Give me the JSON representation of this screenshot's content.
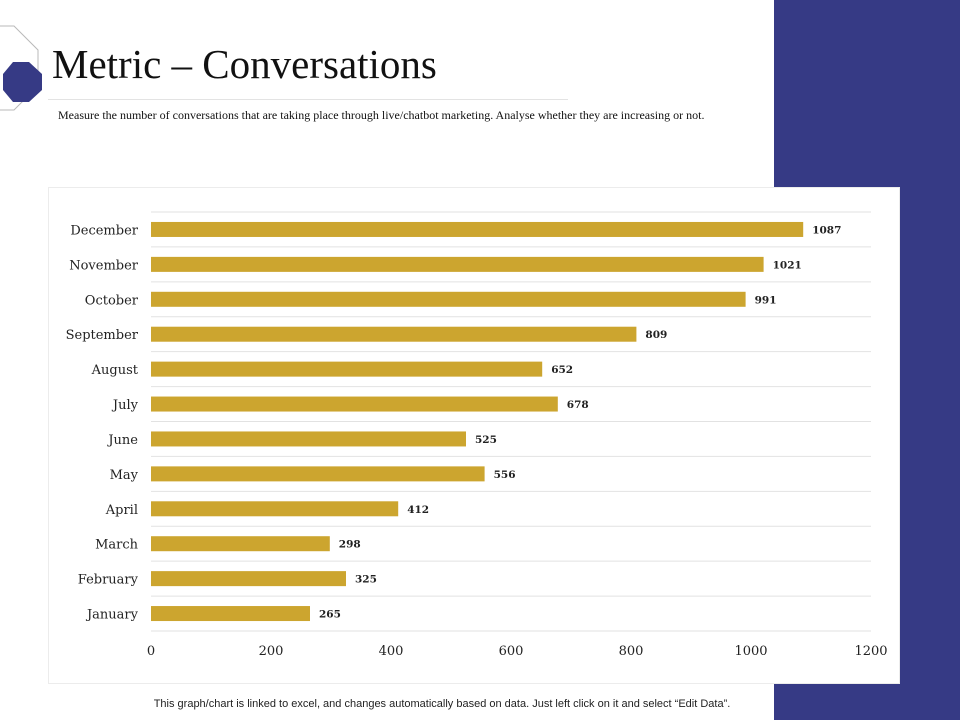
{
  "header": {
    "title": "Metric – Conversations",
    "description": "Measure the number of conversations that are taking place through live/chatbot marketing. Analyse whether they are increasing or not."
  },
  "footer": {
    "note": "This graph/chart is linked to excel, and changes automatically based on data. Just left click on it and select “Edit Data”."
  },
  "colors": {
    "bar": "#cca52f",
    "side_band": "#363a85",
    "deco": "#363a85"
  },
  "chart_data": {
    "type": "bar",
    "orientation": "horizontal",
    "title": "",
    "xlabel": "",
    "ylabel": "",
    "categories": [
      "January",
      "February",
      "March",
      "April",
      "May",
      "June",
      "July",
      "August",
      "September",
      "October",
      "November",
      "December"
    ],
    "values": [
      265,
      325,
      298,
      412,
      556,
      525,
      678,
      652,
      809,
      991,
      1021,
      1087
    ],
    "xlim": [
      0,
      1200
    ],
    "xticks": [
      0,
      200,
      400,
      600,
      800,
      1000,
      1200
    ],
    "grid": "horizontal",
    "legend": "none"
  }
}
